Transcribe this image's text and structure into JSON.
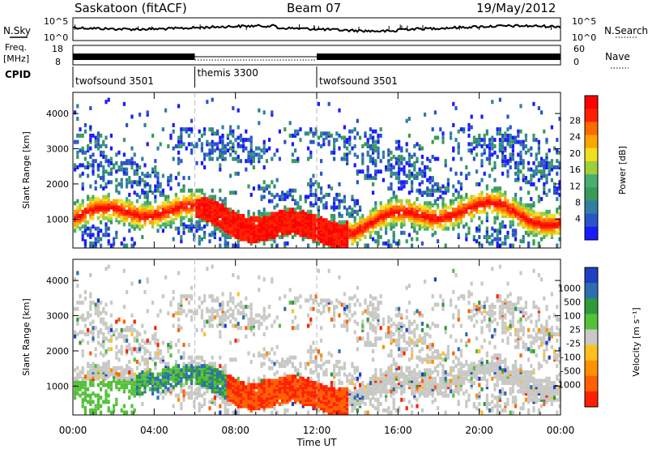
{
  "header": {
    "station": "Saskatoon (fitACF)",
    "beam": "Beam 07",
    "date": "19/May/2012"
  },
  "top_panels": {
    "nsky_label": "N.Sky",
    "nsearch_label": "N.Search",
    "freq_label_1": "Freq.",
    "freq_label_2": "[MHz]",
    "nave_label": "Nave",
    "noise_ticks_left": [
      "10^5",
      "10^0"
    ],
    "noise_ticks_right": [
      "10^5",
      "10^0"
    ],
    "freq_ticks_left": [
      "18",
      "8"
    ],
    "freq_ticks_right": [
      "60",
      "0"
    ],
    "cpid_label": "CPID",
    "cpid_segments": [
      {
        "label": "twofsound 3501",
        "start_hour": 0,
        "end_hour": 6
      },
      {
        "label": "themis 3300",
        "start_hour": 6,
        "end_hour": 12
      },
      {
        "label": "twofsound 3501",
        "start_hour": 12,
        "end_hour": 24
      }
    ]
  },
  "chart_data": [
    {
      "type": "heatmap",
      "ylabel": "Slant Range [km]",
      "yticks": [
        1000,
        2000,
        3000,
        4000
      ],
      "ylim": [
        180,
        4600
      ],
      "xlim": [
        0,
        24
      ],
      "colorbar": {
        "label": "Power [dB]",
        "ticks": [
          "4",
          "8",
          "12",
          "16",
          "20",
          "24",
          "28"
        ],
        "colors": [
          "#1a1aff",
          "#2a54c8",
          "#2f7fa0",
          "#3a9a5a",
          "#46b070",
          "#9fcf3a",
          "#f0e020",
          "#ffa500",
          "#ff6a00",
          "#ff2000",
          "#ff0000"
        ]
      }
    },
    {
      "type": "heatmap",
      "ylabel": "Slant Range [km]",
      "yticks": [
        1000,
        2000,
        3000,
        4000
      ],
      "ylim": [
        180,
        4600
      ],
      "xlim": [
        0,
        24
      ],
      "xlabel": "Time UT",
      "xticks": [
        "00:00",
        "04:00",
        "08:00",
        "12:00",
        "16:00",
        "20:00",
        "00:00"
      ],
      "colorbar": {
        "label": "Velocity [m s⁻¹]",
        "ticks": [
          "1000",
          "500",
          "100",
          "25",
          "-25",
          "-100",
          "-500",
          "-1000"
        ],
        "colors": [
          "#2040c0",
          "#2c6fb0",
          "#2f9a3a",
          "#55c03a",
          "#c8c8c4",
          "#ffc020",
          "#ff9000",
          "#ff6000",
          "#ff2000"
        ]
      }
    }
  ]
}
